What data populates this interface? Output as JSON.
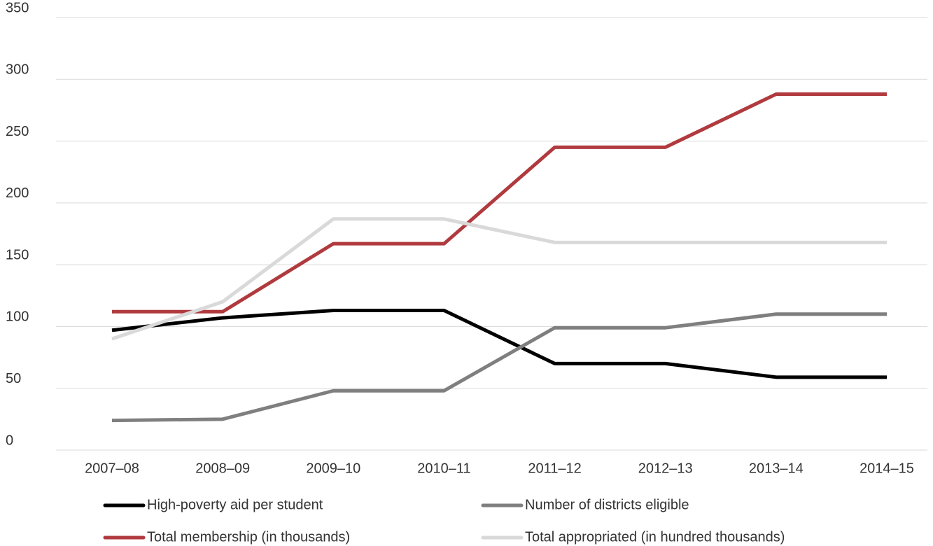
{
  "chart_data": {
    "type": "line",
    "categories": [
      "2007–08",
      "2008–09",
      "2009–10",
      "2010–11",
      "2011–12",
      "2012–13",
      "2013–14",
      "2014–15"
    ],
    "series": [
      {
        "name": "High-poverty aid per student",
        "color": "#000000",
        "values": [
          97,
          107,
          113,
          113,
          70,
          70,
          59,
          59
        ]
      },
      {
        "name": "Number of districts eligible",
        "color": "#7f7f7f",
        "values": [
          24,
          25,
          48,
          48,
          99,
          99,
          110,
          110
        ]
      },
      {
        "name": "Total membership (in thousands)",
        "color": "#b03a3e",
        "values": [
          112,
          112,
          167,
          167,
          245,
          245,
          288,
          288
        ]
      },
      {
        "name": "Total appropriated (in hundred thousands)",
        "color": "#d9d9d9",
        "values": [
          90,
          120,
          187,
          187,
          168,
          168,
          168,
          168
        ]
      }
    ],
    "ylim": [
      0,
      350
    ],
    "yticks": [
      0,
      50,
      100,
      150,
      200,
      250,
      300,
      350
    ],
    "grid": true
  }
}
